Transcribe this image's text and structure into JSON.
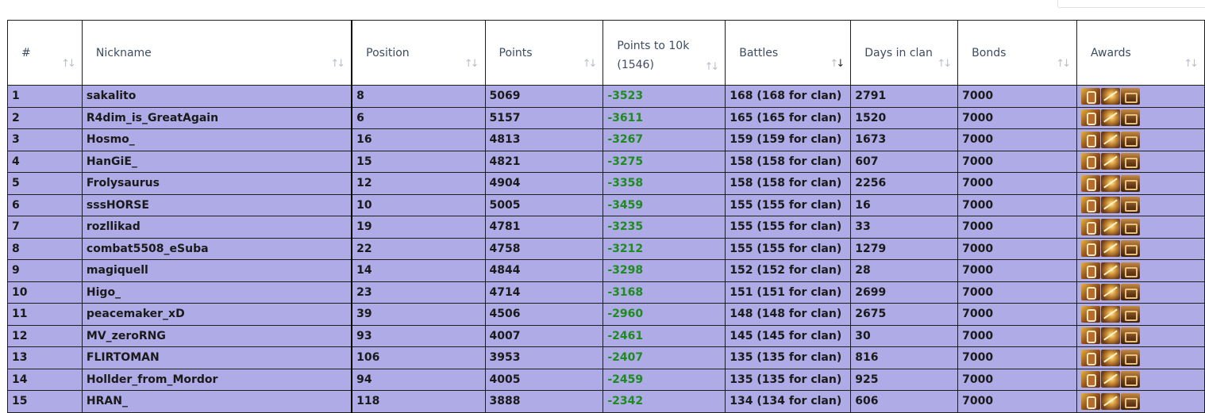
{
  "headers": {
    "rank": "#",
    "nickname": "Nickname",
    "position": "Position",
    "points": "Points",
    "points_to_10k": "Points to 10k (1546)",
    "battles": "Battles",
    "days_in_clan": "Days in clan",
    "bonds": "Bonds",
    "awards": "Awards"
  },
  "sort_glyph": "↑↓",
  "award_icons": [
    "clan-emblem-award-icon",
    "crossed-swords-award-icon",
    "treasure-chest-award-icon"
  ],
  "colors": {
    "row_bg": "#aeabe6",
    "negative_value": "#1d8b1d"
  },
  "rows": [
    {
      "rank": "1",
      "nickname": "sakalito",
      "position": "8",
      "points": "5069",
      "to10k": "-3523",
      "battles": "168 (168 for clan)",
      "days": "2791",
      "bonds": "7000"
    },
    {
      "rank": "2",
      "nickname": "R4dim_is_GreatAgain",
      "position": "6",
      "points": "5157",
      "to10k": "-3611",
      "battles": "165 (165 for clan)",
      "days": "1520",
      "bonds": "7000"
    },
    {
      "rank": "3",
      "nickname": "Hosmo_",
      "position": "16",
      "points": "4813",
      "to10k": "-3267",
      "battles": "159 (159 for clan)",
      "days": "1673",
      "bonds": "7000"
    },
    {
      "rank": "4",
      "nickname": "HanGiE_",
      "position": "15",
      "points": "4821",
      "to10k": "-3275",
      "battles": "158 (158 for clan)",
      "days": "607",
      "bonds": "7000"
    },
    {
      "rank": "5",
      "nickname": "Frolysaurus",
      "position": "12",
      "points": "4904",
      "to10k": "-3358",
      "battles": "158 (158 for clan)",
      "days": "2256",
      "bonds": "7000"
    },
    {
      "rank": "6",
      "nickname": "sssHORSE",
      "position": "10",
      "points": "5005",
      "to10k": "-3459",
      "battles": "155 (155 for clan)",
      "days": "16",
      "bonds": "7000"
    },
    {
      "rank": "7",
      "nickname": "rozllikad",
      "position": "19",
      "points": "4781",
      "to10k": "-3235",
      "battles": "155 (155 for clan)",
      "days": "33",
      "bonds": "7000"
    },
    {
      "rank": "8",
      "nickname": "combat5508_eSuba",
      "position": "22",
      "points": "4758",
      "to10k": "-3212",
      "battles": "155 (155 for clan)",
      "days": "1279",
      "bonds": "7000"
    },
    {
      "rank": "9",
      "nickname": "magiquell",
      "position": "14",
      "points": "4844",
      "to10k": "-3298",
      "battles": "152 (152 for clan)",
      "days": "28",
      "bonds": "7000"
    },
    {
      "rank": "10",
      "nickname": "Higo_",
      "position": "23",
      "points": "4714",
      "to10k": "-3168",
      "battles": "151 (151 for clan)",
      "days": "2699",
      "bonds": "7000"
    },
    {
      "rank": "11",
      "nickname": "peacemaker_xD",
      "position": "39",
      "points": "4506",
      "to10k": "-2960",
      "battles": "148 (148 for clan)",
      "days": "2675",
      "bonds": "7000"
    },
    {
      "rank": "12",
      "nickname": "MV_zeroRNG",
      "position": "93",
      "points": "4007",
      "to10k": "-2461",
      "battles": "145 (145 for clan)",
      "days": "30",
      "bonds": "7000"
    },
    {
      "rank": "13",
      "nickname": "FLIRTOMAN",
      "position": "106",
      "points": "3953",
      "to10k": "-2407",
      "battles": "135 (135 for clan)",
      "days": "816",
      "bonds": "7000"
    },
    {
      "rank": "14",
      "nickname": "Hollder_from_Mordor",
      "position": "94",
      "points": "4005",
      "to10k": "-2459",
      "battles": "135 (135 for clan)",
      "days": "925",
      "bonds": "7000"
    },
    {
      "rank": "15",
      "nickname": "HRAN_",
      "position": "118",
      "points": "3888",
      "to10k": "-2342",
      "battles": "134 (134 for clan)",
      "days": "606",
      "bonds": "7000"
    }
  ]
}
